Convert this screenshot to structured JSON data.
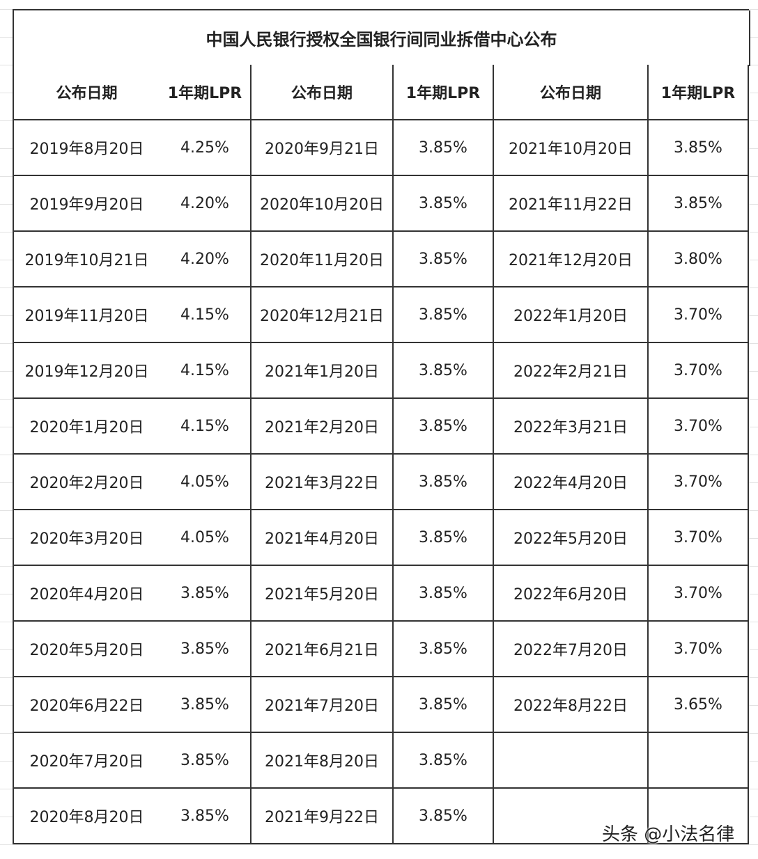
{
  "table": {
    "title": "中国人民银行授权全国银行间同业拆借中心公布",
    "header": [
      "公布日期",
      "1年期LPR",
      "公布日期",
      "1年期LPR",
      "公布日期",
      "1年期LPR"
    ],
    "rows": [
      [
        "2019年8月20日",
        "4.25%",
        "2020年9月21日",
        "3.85%",
        "2021年10月20日",
        "3.85%"
      ],
      [
        "2019年9月20日",
        "4.20%",
        "2020年10月20日",
        "3.85%",
        "2021年11月22日",
        "3.85%"
      ],
      [
        "2019年10月21日",
        "4.20%",
        "2020年11月20日",
        "3.85%",
        "2021年12月20日",
        "3.80%"
      ],
      [
        "2019年11月20日",
        "4.15%",
        "2020年12月21日",
        "3.85%",
        "2022年1月20日",
        "3.70%"
      ],
      [
        "2019年12月20日",
        "4.15%",
        "2021年1月20日",
        "3.85%",
        "2022年2月21日",
        "3.70%"
      ],
      [
        "2020年1月20日",
        "4.15%",
        "2021年2月20日",
        "3.85%",
        "2022年3月21日",
        "3.70%"
      ],
      [
        "2020年2月20日",
        "4.05%",
        "2021年3月22日",
        "3.85%",
        "2022年4月20日",
        "3.70%"
      ],
      [
        "2020年3月20日",
        "4.05%",
        "2021年4月20日",
        "3.85%",
        "2022年5月20日",
        "3.70%"
      ],
      [
        "2020年4月20日",
        "3.85%",
        "2021年5月20日",
        "3.85%",
        "2022年6月20日",
        "3.70%"
      ],
      [
        "2020年5月20日",
        "3.85%",
        "2021年6月21日",
        "3.85%",
        "2022年7月20日",
        "3.70%"
      ],
      [
        "2020年6月22日",
        "3.85%",
        "2021年7月20日",
        "3.85%",
        "2022年8月22日",
        "3.65%"
      ],
      [
        "2020年7月20日",
        "3.85%",
        "2021年8月20日",
        "3.85%"
      ],
      [
        "2020年8月20日",
        "3.85%",
        "2021年9月22日",
        "3.85%"
      ]
    ]
  },
  "watermark": "头条 @小法名律"
}
